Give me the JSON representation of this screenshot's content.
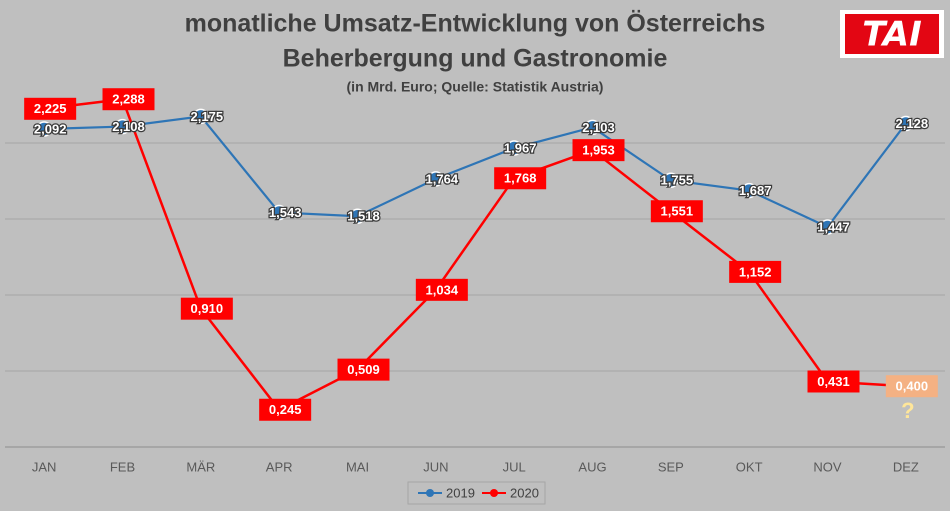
{
  "chart_data": {
    "type": "line",
    "title": "monatliche Umsatz-Entwicklung von Österreichs",
    "subtitle": "Beherbergung und Gastronomie",
    "note": "(in Mrd. Euro; Quelle: Statistik Austria)",
    "logo": "TAI",
    "annotation": "?",
    "categories": [
      "JAN",
      "FEB",
      "MÄR",
      "APR",
      "MAI",
      "JUN",
      "JUL",
      "AUG",
      "SEP",
      "OKT",
      "NOV",
      "DEZ"
    ],
    "series": [
      {
        "name": "2019",
        "color": "#2e75b6",
        "values": [
          2.092,
          2.108,
          2.175,
          1.543,
          1.518,
          1.764,
          1.967,
          2.103,
          1.755,
          1.687,
          1.447,
          2.128
        ],
        "value_labels": [
          "2,092",
          "2,108",
          "2,175",
          "1,543",
          "1,518",
          "1,764",
          "1,967",
          "2,103",
          "1,755",
          "1,687",
          "1,447",
          "2,128"
        ]
      },
      {
        "name": "2020",
        "color": "#ff0000",
        "values": [
          2.225,
          2.288,
          0.91,
          0.245,
          0.509,
          1.034,
          1.768,
          1.953,
          1.551,
          1.152,
          0.431,
          0.4
        ],
        "value_labels": [
          "2,225",
          "2,288",
          "0,910",
          "0,245",
          "0,509",
          "1,034",
          "1,768",
          "1,953",
          "1,551",
          "1,152",
          "0,431",
          "0,400"
        ],
        "label_colors": [
          "#ff0000",
          "#ff0000",
          "#ff0000",
          "#ff0000",
          "#ff0000",
          "#ff0000",
          "#ff0000",
          "#ff0000",
          "#ff0000",
          "#ff0000",
          "#ff0000",
          "#f4b183"
        ]
      }
    ],
    "ylim": [
      0,
      2.5
    ],
    "yticks": [
      0,
      0.5,
      1,
      1.5,
      2
    ],
    "grid": true,
    "legend": "bottom"
  }
}
